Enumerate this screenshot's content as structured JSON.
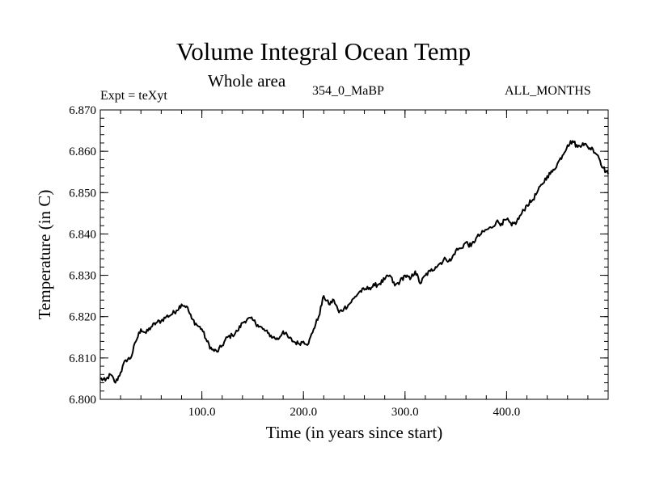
{
  "chart_data": {
    "type": "line",
    "title": "Volume Integral Ocean Temp",
    "subtitle": "Whole area",
    "annotations": {
      "left": "Expt = teXyt",
      "center": "354_0_MaBP",
      "right": "ALL_MONTHS"
    },
    "xlabel": "Time (in years since start)",
    "ylabel": "Temperature (in C)",
    "xlim": [
      0,
      500
    ],
    "ylim": [
      6.8,
      6.87
    ],
    "x_ticks": [
      {
        "value": 100,
        "label": "100.0"
      },
      {
        "value": 200,
        "label": "200.0"
      },
      {
        "value": 300,
        "label": "300.0"
      },
      {
        "value": 400,
        "label": "400.0"
      }
    ],
    "y_ticks": [
      {
        "value": 6.8,
        "label": "6.800"
      },
      {
        "value": 6.81,
        "label": "6.810"
      },
      {
        "value": 6.82,
        "label": "6.820"
      },
      {
        "value": 6.83,
        "label": "6.830"
      },
      {
        "value": 6.84,
        "label": "6.840"
      },
      {
        "value": 6.85,
        "label": "6.850"
      },
      {
        "value": 6.86,
        "label": "6.860"
      },
      {
        "value": 6.87,
        "label": "6.870"
      }
    ],
    "grid": false,
    "series": [
      {
        "color": "#000000",
        "x": [
          0,
          5,
          10,
          15,
          20,
          25,
          30,
          35,
          40,
          45,
          50,
          55,
          60,
          65,
          70,
          75,
          80,
          85,
          90,
          95,
          100,
          105,
          110,
          115,
          120,
          125,
          130,
          135,
          140,
          145,
          150,
          155,
          160,
          165,
          170,
          175,
          180,
          185,
          190,
          195,
          200,
          205,
          210,
          215,
          220,
          225,
          230,
          235,
          240,
          245,
          250,
          255,
          260,
          265,
          270,
          275,
          280,
          285,
          290,
          295,
          300,
          305,
          310,
          315,
          320,
          325,
          330,
          335,
          340,
          345,
          350,
          355,
          360,
          365,
          370,
          375,
          380,
          385,
          390,
          395,
          400,
          405,
          410,
          415,
          420,
          425,
          430,
          435,
          440,
          445,
          450,
          455,
          460,
          465,
          470,
          475,
          480,
          485,
          490,
          495,
          500
        ],
        "y": [
          6.805,
          6.8045,
          6.806,
          6.804,
          6.8065,
          6.8095,
          6.81,
          6.814,
          6.817,
          6.816,
          6.8175,
          6.8185,
          6.819,
          6.82,
          6.8205,
          6.8215,
          6.823,
          6.8225,
          6.8195,
          6.818,
          6.817,
          6.814,
          6.812,
          6.8115,
          6.813,
          6.815,
          6.8155,
          6.8165,
          6.8185,
          6.8195,
          6.8192,
          6.818,
          6.817,
          6.816,
          6.815,
          6.8145,
          6.8165,
          6.815,
          6.814,
          6.8135,
          6.814,
          6.8135,
          6.817,
          6.82,
          6.825,
          6.823,
          6.824,
          6.821,
          6.822,
          6.823,
          6.8245,
          6.826,
          6.8265,
          6.827,
          6.8275,
          6.828,
          6.829,
          6.83,
          6.8275,
          6.8285,
          6.83,
          6.829,
          6.831,
          6.828,
          6.83,
          6.831,
          6.832,
          6.833,
          6.834,
          6.8335,
          6.836,
          6.8365,
          6.838,
          6.837,
          6.839,
          6.84,
          6.841,
          6.8415,
          6.843,
          6.8425,
          6.8435,
          6.842,
          6.843,
          6.845,
          6.847,
          6.848,
          6.85,
          6.852,
          6.854,
          6.855,
          6.857,
          6.859,
          6.8615,
          6.8625,
          6.861,
          6.862,
          6.861,
          6.8605,
          6.859,
          6.856,
          6.8545
        ]
      }
    ]
  }
}
